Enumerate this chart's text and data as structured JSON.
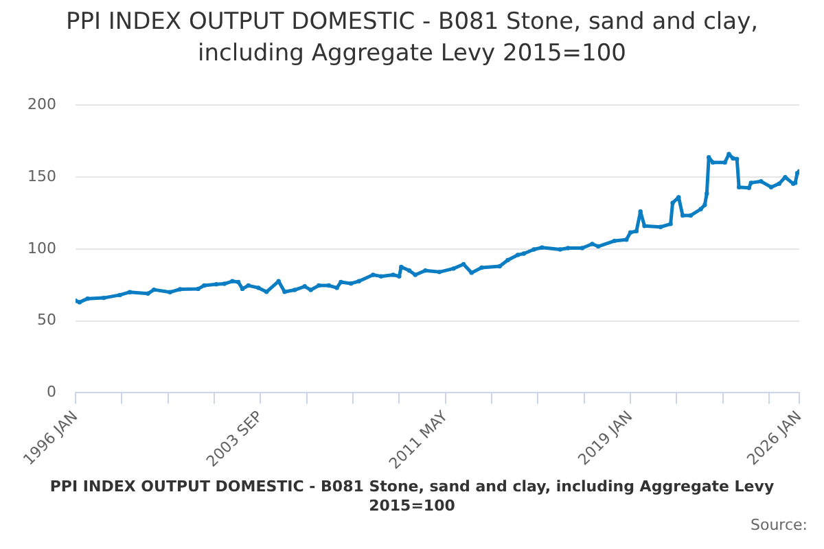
{
  "chart_data": {
    "type": "line",
    "title": "PPI INDEX OUTPUT DOMESTIC - B081 Stone, sand and clay, including Aggregate Levy 2015=100",
    "annotations": [
      "PPI INDEX OUTPUT DOMESTIC - B081 Stone, sand and clay, including Aggregate Levy 2015=100",
      "Source:"
    ],
    "x": [
      "1996-01",
      "1996-03",
      "1996-07",
      "1997-03",
      "1997-11",
      "1998-04",
      "1999-01",
      "1999-04",
      "1999-12",
      "2000-05",
      "2001-02",
      "2001-05",
      "2001-11",
      "2002-03",
      "2002-07",
      "2002-10",
      "2002-12",
      "2003-03",
      "2003-08",
      "2003-12",
      "2004-06",
      "2004-09",
      "2005-02",
      "2005-07",
      "2005-10",
      "2006-02",
      "2006-07",
      "2006-11",
      "2007-01",
      "2007-06",
      "2007-10",
      "2008-05",
      "2008-09",
      "2009-03",
      "2009-06",
      "2009-07",
      "2009-11",
      "2010-02",
      "2010-07",
      "2011-02",
      "2011-09",
      "2012-02",
      "2012-06",
      "2012-11",
      "2013-08",
      "2013-12",
      "2014-05",
      "2014-08",
      "2015-01",
      "2015-05",
      "2016-02",
      "2016-06",
      "2017-01",
      "2017-06",
      "2017-09",
      "2018-05",
      "2018-11",
      "2019-01",
      "2019-04",
      "2019-06",
      "2019-08",
      "2020-04",
      "2020-09",
      "2020-10",
      "2021-01",
      "2021-03",
      "2021-07",
      "2021-12",
      "2022-02",
      "2022-03",
      "2022-04",
      "2022-06",
      "2022-12",
      "2023-02",
      "2023-04",
      "2023-06",
      "2023-07",
      "2023-12",
      "2024-01",
      "2024-06",
      "2024-11",
      "2025-03",
      "2025-06",
      "2025-10",
      "2025-11",
      "2025-12",
      "2026-01"
    ],
    "series": [
      {
        "color": "#0b7dc2",
        "values": [
          64,
          63,
          65.5,
          66,
          68,
          70,
          69,
          71.7,
          70,
          72,
          72.3,
          74.6,
          75.5,
          75.8,
          77.6,
          77,
          72.3,
          74.6,
          73,
          70.2,
          77.6,
          70.2,
          71.5,
          74,
          71.5,
          74.6,
          74.6,
          73,
          77,
          76,
          77.6,
          82,
          81,
          82,
          81,
          87.5,
          85,
          82,
          85,
          84,
          86.4,
          89.4,
          83.5,
          87,
          88,
          92.3,
          95.9,
          96.8,
          99.7,
          101,
          99.7,
          100.6,
          100.6,
          103.5,
          101.8,
          105.6,
          106.5,
          111.5,
          112.4,
          126,
          116,
          115.3,
          117.4,
          132,
          136,
          123.3,
          123.3,
          127.7,
          130.7,
          138.6,
          163.7,
          160.2,
          160.2,
          166,
          163,
          162.5,
          143,
          142.5,
          146,
          147,
          143,
          145.4,
          149.9,
          145.4,
          146,
          152.8,
          154
        ]
      }
    ],
    "xlim": [
      "1996-01",
      "2026-01"
    ],
    "xticks": [
      {
        "value": "1996-01",
        "label": "1996 JAN"
      },
      {
        "value": "1997-12",
        "label": null
      },
      {
        "value": "1999-11",
        "label": null
      },
      {
        "value": "2001-10",
        "label": null
      },
      {
        "value": "2003-09",
        "label": "2003 SEP"
      },
      {
        "value": "2005-08",
        "label": null
      },
      {
        "value": "2007-07",
        "label": null
      },
      {
        "value": "2009-06",
        "label": null
      },
      {
        "value": "2011-05",
        "label": "2011 MAY"
      },
      {
        "value": "2013-04",
        "label": null
      },
      {
        "value": "2015-03",
        "label": null
      },
      {
        "value": "2017-02",
        "label": null
      },
      {
        "value": "2019-01",
        "label": "2019 JAN"
      },
      {
        "value": "2020-12",
        "label": null
      },
      {
        "value": "2022-11",
        "label": null
      },
      {
        "value": "2024-10",
        "label": null
      },
      {
        "value": "2026-01",
        "label": "2026 JAN"
      }
    ],
    "ylim": [
      0,
      200
    ],
    "yticks": [
      0,
      50,
      100,
      150,
      200
    ],
    "grid": "y",
    "legend": false,
    "marker": "circle",
    "line_style": "solid"
  }
}
